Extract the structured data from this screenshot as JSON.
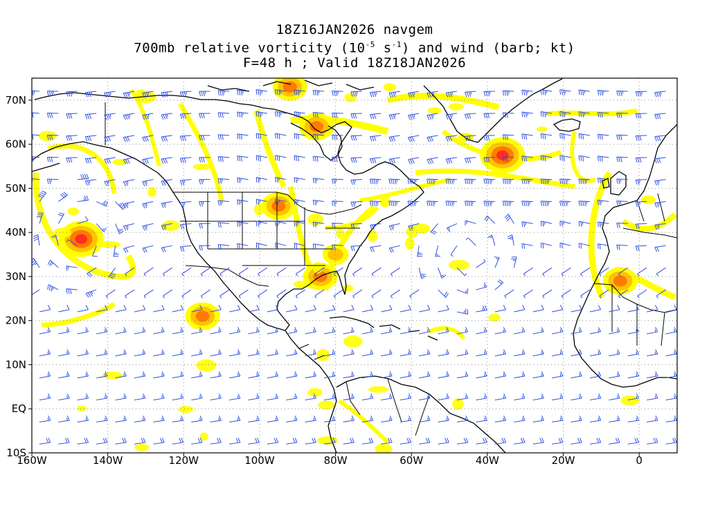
{
  "titles": {
    "line1": "18Z16JAN2026 navgem",
    "line2_pre": "700mb relative vorticity (10",
    "line2_exp1": "-5",
    "line2_mid": " s",
    "line2_exp2": "-1",
    "line2_post": ") and wind (barb; kt)",
    "line3": "F=48 h ; Valid 18Z18JAN2026"
  },
  "axes": {
    "lon_labels": [
      "160W",
      "140W",
      "120W",
      "100W",
      "80W",
      "60W",
      "40W",
      "20W",
      "0"
    ],
    "lon_values": [
      -160,
      -140,
      -120,
      -100,
      -80,
      -60,
      -40,
      -20,
      0
    ],
    "lat_labels": [
      "70N",
      "60N",
      "50N",
      "40N",
      "30N",
      "20N",
      "10N",
      "EQ",
      "10S"
    ],
    "lat_values": [
      70,
      60,
      50,
      40,
      30,
      20,
      10,
      0,
      -10
    ],
    "lon_range": [
      -160,
      10
    ],
    "lat_range": [
      -10,
      75
    ]
  },
  "colors": {
    "wind_barb": "#2f4fe0",
    "shade_low": "#ffff00",
    "shade_mid": "#ffc300",
    "shade_high": "#ff7a00",
    "shade_max": "#ff2d1e",
    "coastline": "#000000",
    "gridline": "#888888"
  },
  "vorticity_maxima": [
    {
      "lon": -147,
      "lat": 38.5,
      "level": "max"
    },
    {
      "lon": -115,
      "lat": 21,
      "level": "high"
    },
    {
      "lon": -95,
      "lat": 46,
      "level": "high"
    },
    {
      "lon": -84,
      "lat": 30,
      "level": "high"
    },
    {
      "lon": -80,
      "lat": 35,
      "level": "mid"
    },
    {
      "lon": -36,
      "lat": 57.5,
      "level": "max"
    },
    {
      "lon": -85,
      "lat": 64,
      "level": "high"
    },
    {
      "lon": -92,
      "lat": 73,
      "level": "high"
    },
    {
      "lon": -5,
      "lat": 29,
      "level": "high"
    }
  ]
}
